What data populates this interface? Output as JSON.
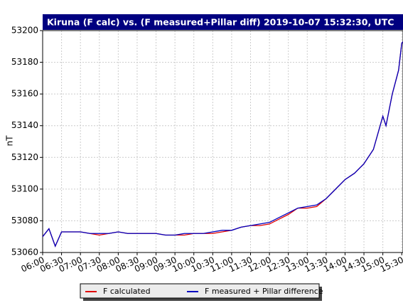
{
  "chart_data": {
    "type": "line",
    "title": "Kiruna (F calc) vs. (F measured+Pillar diff) 2019-10-07 15:32:30, UTC",
    "y_label": "nT",
    "x": [
      "06:00",
      "06:10",
      "06:20",
      "06:30",
      "06:45",
      "07:00",
      "07:15",
      "07:30",
      "07:45",
      "08:00",
      "08:15",
      "08:30",
      "08:45",
      "09:00",
      "09:15",
      "09:30",
      "09:45",
      "10:00",
      "10:15",
      "10:30",
      "10:45",
      "11:00",
      "11:15",
      "11:30",
      "11:45",
      "12:00",
      "12:15",
      "12:30",
      "12:45",
      "13:00",
      "13:15",
      "13:30",
      "13:45",
      "14:00",
      "14:15",
      "14:30",
      "14:45",
      "15:00",
      "15:05",
      "15:15",
      "15:25",
      "15:30",
      "15:32"
    ],
    "series": [
      {
        "name": "F calculated",
        "color": "#e00000",
        "values": [
          53070,
          53075,
          53064,
          53073,
          53073,
          53073,
          53072,
          53071,
          53072,
          53073,
          53072,
          53072,
          53072,
          53072,
          53071,
          53071,
          53071,
          53072,
          53072,
          53072,
          53073,
          53074,
          53076,
          53077,
          53077,
          53078,
          53081,
          53084,
          53088,
          53088,
          53089,
          53094,
          53100,
          53106,
          53110,
          53116,
          53125,
          53146,
          53140,
          53160,
          53175,
          53192,
          53193
        ]
      },
      {
        "name": "F measured + Pillar difference",
        "color": "#0000c0",
        "values": [
          53070,
          53075,
          53064,
          53073,
          53073,
          53073,
          53072,
          53072,
          53072,
          53073,
          53072,
          53072,
          53072,
          53072,
          53071,
          53071,
          53072,
          53072,
          53072,
          53073,
          53074,
          53074,
          53076,
          53077,
          53078,
          53079,
          53082,
          53085,
          53088,
          53089,
          53090,
          53094,
          53100,
          53106,
          53110,
          53116,
          53125,
          53146,
          53140,
          53160,
          53175,
          53192,
          53193
        ]
      }
    ],
    "xlim": [
      "06:00",
      "15:32"
    ],
    "xticks": [
      "06:00",
      "06:30",
      "07:00",
      "07:30",
      "08:00",
      "08:30",
      "09:00",
      "09:30",
      "10:00",
      "10:30",
      "11:00",
      "11:30",
      "12:00",
      "12:30",
      "13:00",
      "13:30",
      "14:00",
      "14:30",
      "15:00",
      "15:30"
    ],
    "ylim": [
      53060,
      53200
    ],
    "yticks": [
      53060,
      53080,
      53100,
      53120,
      53140,
      53160,
      53180,
      53200
    ],
    "grid": true
  }
}
